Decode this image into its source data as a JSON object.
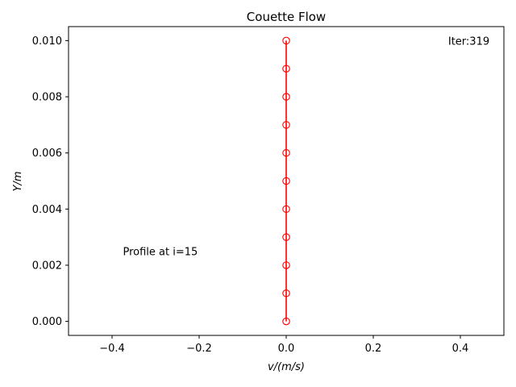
{
  "chart_data": {
    "type": "line",
    "title": "Couette Flow",
    "xlabel": "v/(m/s)",
    "ylabel": "Y/m",
    "xlim": [
      -0.5,
      0.5
    ],
    "ylim": [
      -0.0005,
      0.0105
    ],
    "xticks": [
      -0.4,
      -0.2,
      0.0,
      0.2,
      0.4
    ],
    "xtick_labels": [
      "−0.4",
      "−0.2",
      "0.0",
      "0.2",
      "0.4"
    ],
    "yticks": [
      0.0,
      0.002,
      0.004,
      0.006,
      0.008,
      0.01
    ],
    "ytick_labels": [
      "0.000",
      "0.002",
      "0.004",
      "0.006",
      "0.008",
      "0.010"
    ],
    "grid": false,
    "series": [
      {
        "color": "#ff0000",
        "marker": "circle-open",
        "x": [
          0,
          0,
          0,
          0,
          0,
          0,
          0,
          0,
          0,
          0,
          0
        ],
        "y": [
          0.0,
          0.001,
          0.002,
          0.003,
          0.004,
          0.005,
          0.006,
          0.007,
          0.008,
          0.009,
          0.01
        ]
      }
    ],
    "annotations": [
      {
        "text": "Iter:319",
        "x": 0.372,
        "y": 0.01
      },
      {
        "text": "Profile at i=15",
        "x": -0.375,
        "y": 0.0025
      }
    ]
  }
}
